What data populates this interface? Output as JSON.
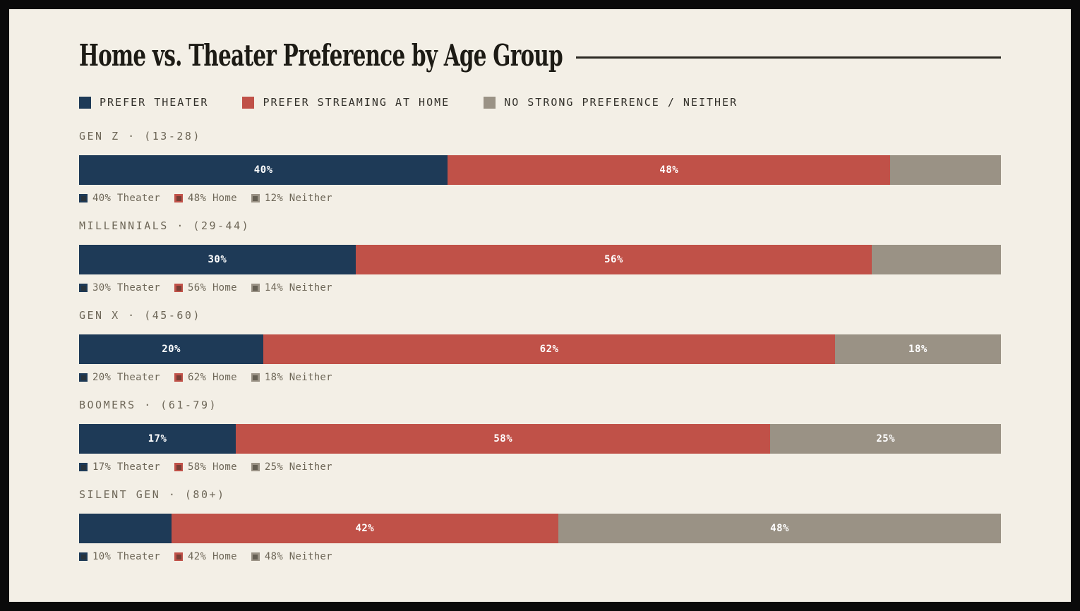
{
  "title": "Home vs. Theater Preference by Age Group",
  "colors": {
    "background": "#f3efe6",
    "frame": "#0a0a0a",
    "title_text": "#1d1b15",
    "rule": "#2c2a24",
    "legend_text": "#32302a",
    "label_text": "#6e6758",
    "bar_value_text": "#ffffff",
    "theater": "#1e3a57",
    "home": "#c05148",
    "neither": "#9a9285"
  },
  "legend": {
    "items": [
      {
        "label": "PREFER THEATER",
        "key": "theater",
        "color": "#1e3a57"
      },
      {
        "label": "PREFER STREAMING AT HOME",
        "key": "home",
        "color": "#c05148"
      },
      {
        "label": "NO STRONG PREFERENCE / NEITHER",
        "key": "neither",
        "color": "#9a9285"
      }
    ]
  },
  "chart_data": {
    "type": "bar",
    "variant": "horizontal-stacked-percent",
    "title": "Home vs. Theater Preference by Age Group",
    "categories": [
      "GEN Z · (13-28)",
      "MILLENNIALS · (29-44)",
      "GEN X · (45-60)",
      "BOOMERS · (61-79)",
      "SILENT GEN · (80+)"
    ],
    "series": [
      {
        "name": "PREFER THEATER",
        "key": "theater",
        "color": "#1e3a57",
        "sub_word": "Theater",
        "values": [
          40,
          30,
          20,
          17,
          10
        ]
      },
      {
        "name": "PREFER STREAMING AT HOME",
        "key": "home",
        "color": "#c05148",
        "sub_word": "Home",
        "values": [
          48,
          56,
          62,
          58,
          42
        ]
      },
      {
        "name": "NO STRONG PREFERENCE / NEITHER",
        "key": "neither",
        "color": "#9a9285",
        "sub_word": "Neither",
        "values": [
          12,
          14,
          18,
          25,
          48
        ]
      }
    ],
    "sub_legend_texts": [
      [
        "40% Theater",
        "48% Home",
        "12% Neither"
      ],
      [
        "30% Theater",
        "56% Home",
        "14% Neither"
      ],
      [
        "20% Theater",
        "62% Home",
        "18% Neither"
      ],
      [
        "17% Theater",
        "58% Home",
        "25% Neither"
      ],
      [
        "10% Theater",
        "42% Home",
        "48% Neither"
      ]
    ],
    "value_suffix": "%",
    "inline_label_min_percent": 15,
    "xlim": [
      0,
      100
    ],
    "grid": false,
    "legend_position": "top"
  }
}
